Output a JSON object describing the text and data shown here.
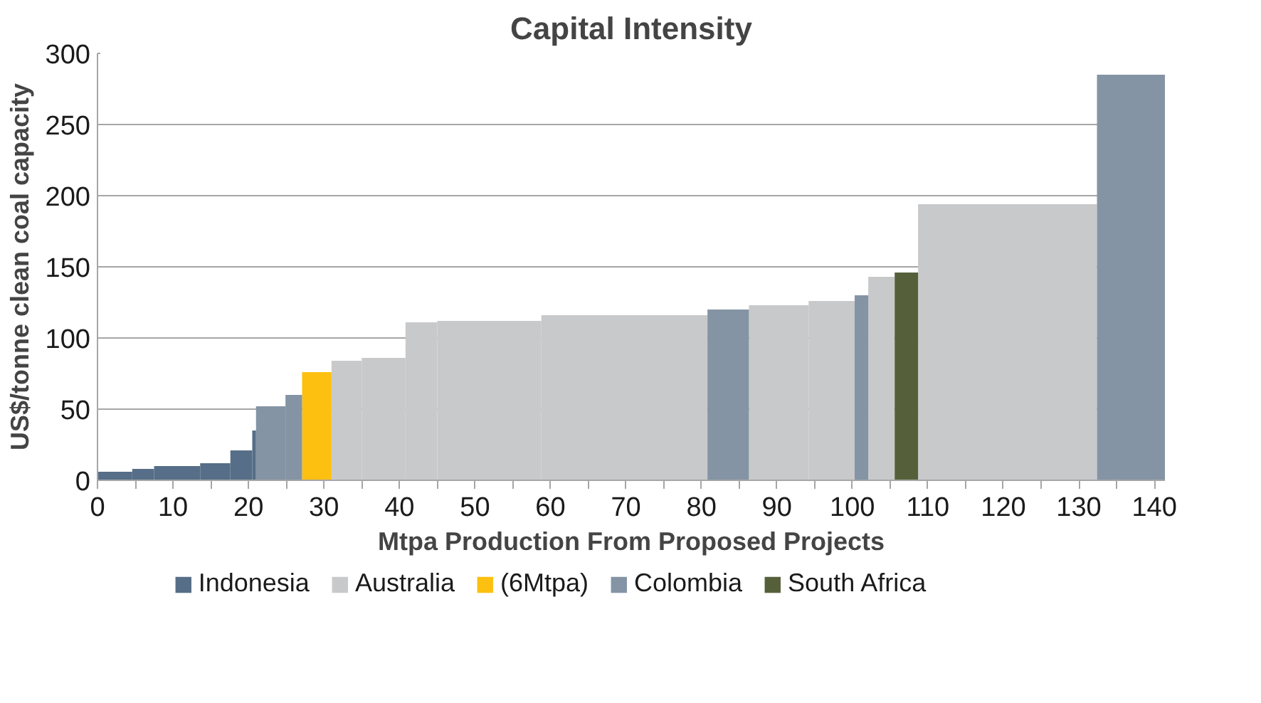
{
  "chart_data": {
    "type": "histogram",
    "title": "Capital Intensity",
    "xlabel": "Mtpa Production From Proposed Projects",
    "ylabel": "US$/tonne clean coal capacity",
    "bins": [
      0,
      4.6,
      7.5,
      13.6,
      17.6,
      20.5,
      21,
      24.9,
      27.1,
      31,
      35,
      40.8,
      45,
      58.8,
      80.8,
      86.3,
      94.2,
      100.3,
      102.1,
      105.6,
      108.7,
      132.4,
      141.4
    ],
    "series": [
      {
        "name": "Indonesia",
        "color": "#566e87",
        "values": [
          6,
          8,
          10,
          12,
          21,
          35,
          null,
          null,
          null,
          null,
          null,
          null,
          null,
          null,
          null,
          null,
          null,
          null,
          null,
          null,
          null,
          null
        ]
      },
      {
        "name": "Australia",
        "color": "#c8c9cb",
        "values": [
          null,
          null,
          null,
          null,
          null,
          null,
          null,
          null,
          null,
          84,
          86,
          111,
          112,
          116,
          null,
          123,
          126,
          null,
          143,
          null,
          194,
          null
        ]
      },
      {
        "name": "(6Mtpa)",
        "color": "#fdc010",
        "values": [
          null,
          null,
          null,
          null,
          null,
          null,
          null,
          null,
          76,
          null,
          null,
          null,
          null,
          null,
          null,
          null,
          null,
          null,
          null,
          null,
          null,
          null
        ]
      },
      {
        "name": "Colombia",
        "color": "#8494a4",
        "values": [
          null,
          null,
          null,
          null,
          null,
          null,
          52,
          60,
          null,
          null,
          null,
          null,
          null,
          null,
          120,
          null,
          null,
          130,
          null,
          null,
          null,
          285
        ]
      },
      {
        "name": "South Africa",
        "color": "#55603a",
        "values": [
          null,
          null,
          null,
          null,
          null,
          null,
          null,
          null,
          null,
          null,
          null,
          null,
          null,
          null,
          null,
          null,
          null,
          null,
          null,
          146,
          null,
          null
        ]
      }
    ],
    "xlim": [
      0,
      141.4
    ],
    "xticks": [
      0,
      {
        "value": 5,
        "label": null
      },
      10,
      {
        "value": 15,
        "label": null
      },
      20,
      {
        "value": 25,
        "label": null
      },
      30,
      {
        "value": 35,
        "label": null
      },
      40,
      {
        "value": 45,
        "label": null
      },
      50,
      {
        "value": 55,
        "label": null
      },
      60,
      {
        "value": 65,
        "label": null
      },
      70,
      {
        "value": 75,
        "label": null
      },
      80,
      {
        "value": 85,
        "label": null
      },
      90,
      {
        "value": 95,
        "label": null
      },
      100,
      {
        "value": 105,
        "label": null
      },
      110,
      {
        "value": 115,
        "label": null
      },
      120,
      {
        "value": 125,
        "label": null
      },
      130,
      {
        "value": 135,
        "label": null
      },
      140
    ],
    "ylim": [
      0,
      300
    ],
    "yticks": [
      0,
      50,
      100,
      150,
      200,
      250,
      300
    ],
    "grid": "y",
    "legend": "bottom"
  }
}
